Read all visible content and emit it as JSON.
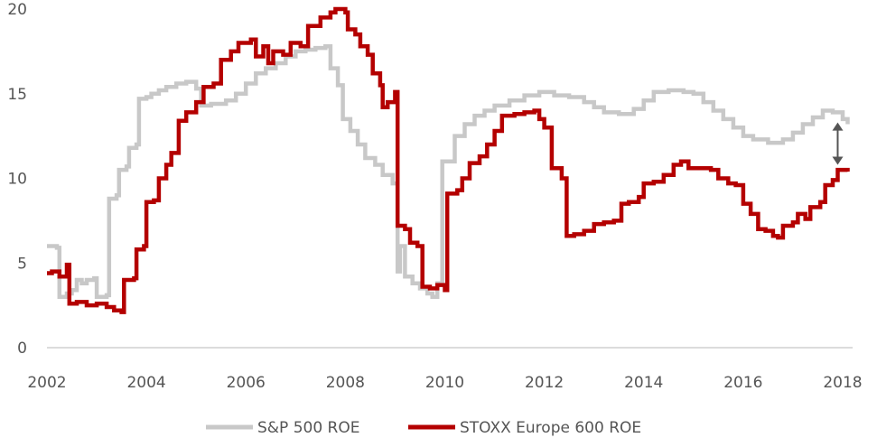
{
  "chart_data": {
    "type": "line",
    "title": "",
    "xlabel": "",
    "ylabel": "",
    "xlim": [
      2002,
      2018.2
    ],
    "ylim": [
      0,
      20
    ],
    "x_ticks": [
      "2002",
      "2004",
      "2006",
      "2008",
      "2010",
      "2012",
      "2014",
      "2016",
      "2018"
    ],
    "y_ticks": [
      "0",
      "5",
      "10",
      "15",
      "20"
    ],
    "grid": false,
    "legend": {
      "placement": "bottom"
    },
    "annotation": {
      "type": "double-arrow",
      "x": 2017.9,
      "y_from": 13.3,
      "y_to": 10.8
    },
    "series": [
      {
        "name": "S&P 500 ROE",
        "color": "#c8c8c8",
        "points": [
          [
            2002.0,
            6.0
          ],
          [
            2002.2,
            5.9
          ],
          [
            2002.25,
            3.0
          ],
          [
            2002.4,
            3.2
          ],
          [
            2002.5,
            3.4
          ],
          [
            2002.6,
            4.0
          ],
          [
            2002.7,
            3.8
          ],
          [
            2002.8,
            4.0
          ],
          [
            2002.95,
            4.1
          ],
          [
            2003.0,
            3.0
          ],
          [
            2003.2,
            3.1
          ],
          [
            2003.25,
            8.8
          ],
          [
            2003.4,
            9.0
          ],
          [
            2003.45,
            10.5
          ],
          [
            2003.6,
            10.7
          ],
          [
            2003.65,
            11.8
          ],
          [
            2003.8,
            12.0
          ],
          [
            2003.85,
            14.7
          ],
          [
            2004.0,
            14.8
          ],
          [
            2004.1,
            15.0
          ],
          [
            2004.25,
            15.2
          ],
          [
            2004.4,
            15.4
          ],
          [
            2004.6,
            15.6
          ],
          [
            2004.8,
            15.7
          ],
          [
            2005.0,
            15.3
          ],
          [
            2005.1,
            14.3
          ],
          [
            2005.3,
            14.4
          ],
          [
            2005.6,
            14.6
          ],
          [
            2005.8,
            15.0
          ],
          [
            2006.0,
            15.6
          ],
          [
            2006.2,
            16.2
          ],
          [
            2006.4,
            16.5
          ],
          [
            2006.6,
            16.8
          ],
          [
            2006.8,
            17.2
          ],
          [
            2007.0,
            17.5
          ],
          [
            2007.2,
            17.6
          ],
          [
            2007.4,
            17.7
          ],
          [
            2007.6,
            17.8
          ],
          [
            2007.7,
            16.5
          ],
          [
            2007.85,
            15.5
          ],
          [
            2007.95,
            13.5
          ],
          [
            2008.1,
            12.8
          ],
          [
            2008.25,
            12.0
          ],
          [
            2008.4,
            11.2
          ],
          [
            2008.6,
            10.8
          ],
          [
            2008.75,
            10.2
          ],
          [
            2008.95,
            9.7
          ],
          [
            2009.05,
            4.5
          ],
          [
            2009.1,
            6.0
          ],
          [
            2009.2,
            4.2
          ],
          [
            2009.35,
            3.8
          ],
          [
            2009.5,
            3.5
          ],
          [
            2009.65,
            3.2
          ],
          [
            2009.75,
            3.0
          ],
          [
            2009.85,
            3.8
          ],
          [
            2009.95,
            11.0
          ],
          [
            2010.2,
            12.5
          ],
          [
            2010.4,
            13.2
          ],
          [
            2010.6,
            13.7
          ],
          [
            2010.8,
            14.0
          ],
          [
            2011.0,
            14.3
          ],
          [
            2011.3,
            14.6
          ],
          [
            2011.6,
            14.9
          ],
          [
            2011.9,
            15.1
          ],
          [
            2012.2,
            14.9
          ],
          [
            2012.5,
            14.8
          ],
          [
            2012.8,
            14.5
          ],
          [
            2013.0,
            14.2
          ],
          [
            2013.2,
            13.9
          ],
          [
            2013.5,
            13.8
          ],
          [
            2013.8,
            14.1
          ],
          [
            2014.0,
            14.6
          ],
          [
            2014.2,
            15.1
          ],
          [
            2014.5,
            15.2
          ],
          [
            2014.8,
            15.1
          ],
          [
            2015.0,
            15.0
          ],
          [
            2015.2,
            14.5
          ],
          [
            2015.4,
            14.0
          ],
          [
            2015.6,
            13.5
          ],
          [
            2015.8,
            13.0
          ],
          [
            2016.0,
            12.5
          ],
          [
            2016.2,
            12.3
          ],
          [
            2016.5,
            12.1
          ],
          [
            2016.8,
            12.3
          ],
          [
            2017.0,
            12.7
          ],
          [
            2017.2,
            13.2
          ],
          [
            2017.4,
            13.6
          ],
          [
            2017.6,
            14.0
          ],
          [
            2017.8,
            13.9
          ],
          [
            2018.0,
            13.5
          ],
          [
            2018.1,
            13.2
          ]
        ]
      },
      {
        "name": "STOXX Europe 600 ROE",
        "color": "#b40000",
        "points": [
          [
            2002.0,
            4.4
          ],
          [
            2002.1,
            4.5
          ],
          [
            2002.25,
            4.2
          ],
          [
            2002.4,
            4.9
          ],
          [
            2002.45,
            2.6
          ],
          [
            2002.6,
            2.7
          ],
          [
            2002.8,
            2.5
          ],
          [
            2003.0,
            2.6
          ],
          [
            2003.2,
            2.4
          ],
          [
            2003.35,
            2.2
          ],
          [
            2003.5,
            2.1
          ],
          [
            2003.55,
            4.0
          ],
          [
            2003.75,
            4.1
          ],
          [
            2003.8,
            5.8
          ],
          [
            2003.95,
            6.0
          ],
          [
            2004.0,
            8.6
          ],
          [
            2004.15,
            8.7
          ],
          [
            2004.25,
            10.0
          ],
          [
            2004.4,
            10.8
          ],
          [
            2004.5,
            11.5
          ],
          [
            2004.65,
            13.4
          ],
          [
            2004.8,
            13.9
          ],
          [
            2005.0,
            14.5
          ],
          [
            2005.15,
            15.4
          ],
          [
            2005.35,
            15.6
          ],
          [
            2005.5,
            17.0
          ],
          [
            2005.7,
            17.5
          ],
          [
            2005.85,
            18.0
          ],
          [
            2006.1,
            18.2
          ],
          [
            2006.2,
            17.2
          ],
          [
            2006.35,
            17.8
          ],
          [
            2006.45,
            16.8
          ],
          [
            2006.55,
            17.5
          ],
          [
            2006.75,
            17.3
          ],
          [
            2006.9,
            18.0
          ],
          [
            2007.1,
            17.8
          ],
          [
            2007.25,
            19.0
          ],
          [
            2007.5,
            19.5
          ],
          [
            2007.7,
            19.8
          ],
          [
            2007.8,
            20.0
          ],
          [
            2008.0,
            19.8
          ],
          [
            2008.05,
            18.8
          ],
          [
            2008.2,
            18.5
          ],
          [
            2008.3,
            17.8
          ],
          [
            2008.45,
            17.3
          ],
          [
            2008.55,
            16.2
          ],
          [
            2008.7,
            15.5
          ],
          [
            2008.75,
            14.2
          ],
          [
            2008.85,
            14.5
          ],
          [
            2009.0,
            15.1
          ],
          [
            2009.05,
            7.2
          ],
          [
            2009.2,
            7.0
          ],
          [
            2009.3,
            6.2
          ],
          [
            2009.45,
            6.0
          ],
          [
            2009.55,
            3.6
          ],
          [
            2009.7,
            3.5
          ],
          [
            2009.85,
            3.7
          ],
          [
            2010.0,
            3.4
          ],
          [
            2010.05,
            9.1
          ],
          [
            2010.25,
            9.3
          ],
          [
            2010.35,
            10.0
          ],
          [
            2010.5,
            10.9
          ],
          [
            2010.7,
            11.3
          ],
          [
            2010.85,
            12.0
          ],
          [
            2011.0,
            12.8
          ],
          [
            2011.15,
            13.7
          ],
          [
            2011.4,
            13.8
          ],
          [
            2011.6,
            13.9
          ],
          [
            2011.8,
            14.0
          ],
          [
            2011.9,
            13.5
          ],
          [
            2012.0,
            13.0
          ],
          [
            2012.15,
            10.6
          ],
          [
            2012.35,
            10.0
          ],
          [
            2012.45,
            6.6
          ],
          [
            2012.6,
            6.7
          ],
          [
            2012.8,
            6.9
          ],
          [
            2013.0,
            7.3
          ],
          [
            2013.2,
            7.4
          ],
          [
            2013.4,
            7.5
          ],
          [
            2013.55,
            8.5
          ],
          [
            2013.7,
            8.6
          ],
          [
            2013.9,
            8.9
          ],
          [
            2014.0,
            9.7
          ],
          [
            2014.2,
            9.8
          ],
          [
            2014.4,
            10.2
          ],
          [
            2014.6,
            10.8
          ],
          [
            2014.75,
            11.0
          ],
          [
            2014.9,
            10.6
          ],
          [
            2015.2,
            10.6
          ],
          [
            2015.35,
            10.5
          ],
          [
            2015.5,
            10.0
          ],
          [
            2015.7,
            9.7
          ],
          [
            2015.85,
            9.6
          ],
          [
            2016.0,
            8.5
          ],
          [
            2016.15,
            7.9
          ],
          [
            2016.3,
            7.0
          ],
          [
            2016.45,
            6.9
          ],
          [
            2016.6,
            6.6
          ],
          [
            2016.7,
            6.5
          ],
          [
            2016.8,
            7.2
          ],
          [
            2017.0,
            7.4
          ],
          [
            2017.1,
            7.9
          ],
          [
            2017.25,
            7.6
          ],
          [
            2017.35,
            8.3
          ],
          [
            2017.55,
            8.6
          ],
          [
            2017.65,
            9.6
          ],
          [
            2017.8,
            9.9
          ],
          [
            2017.9,
            10.5
          ],
          [
            2018.1,
            10.4
          ]
        ]
      }
    ]
  }
}
